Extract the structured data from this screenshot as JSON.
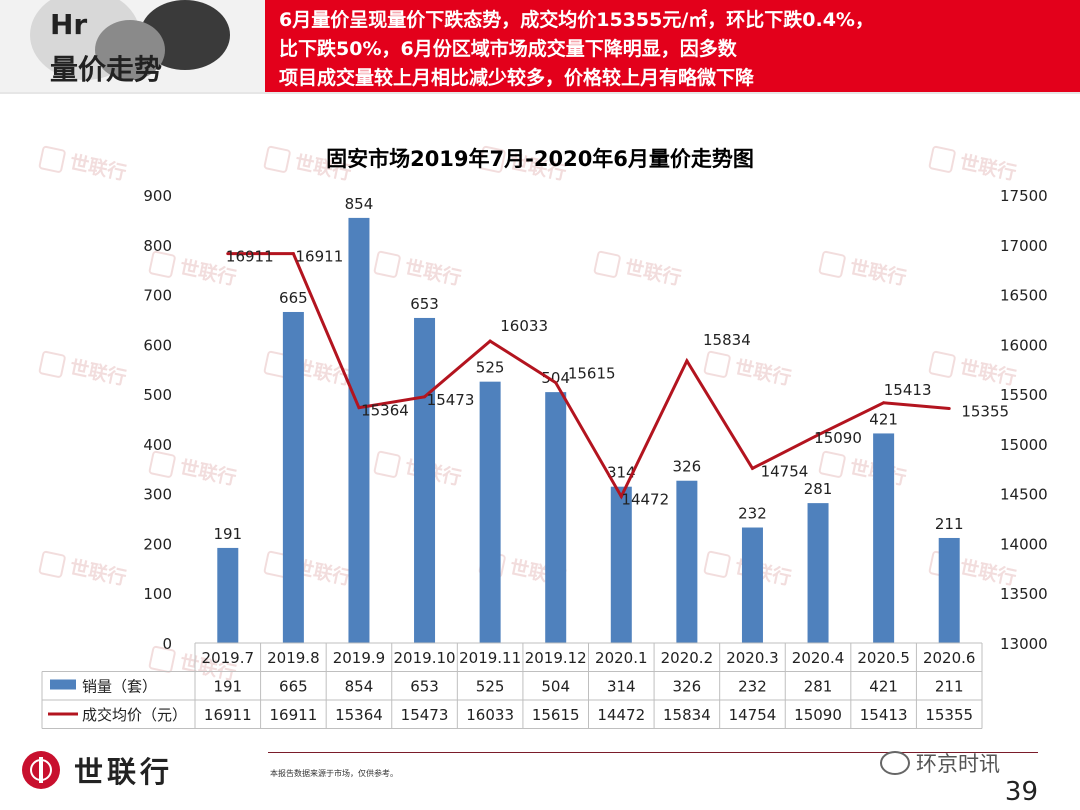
{
  "header": {
    "left_text_1": "Hr",
    "left_text_2": "量价走势",
    "banner_line1": "6月量价呈现量价下跌态势，成交均价15355元/㎡，环比下跌0.4%，",
    "banner_line2": "比下跌50%，6月份区域市场成交量下降明显，因多数",
    "banner_line3": "项目成交量较上月相比减少较多，价格较上月有略微下降"
  },
  "watermark_text": "世联行",
  "colors": {
    "bar": "#4f81bd",
    "line": "#b3141f",
    "banner": "#e3001b",
    "grid_border": "#bfbfbf"
  },
  "chart_data": {
    "type": "bar+line",
    "title": "固安市场2019年7月-2020年6月量价走势图",
    "categories": [
      "2019.7",
      "2019.8",
      "2019.9",
      "2019.10",
      "2019.11",
      "2019.12",
      "2020.1",
      "2020.2",
      "2020.3",
      "2020.4",
      "2020.5",
      "2020.6"
    ],
    "series": [
      {
        "name": "销量（套）",
        "type": "bar",
        "axis": "left",
        "values": [
          191,
          665,
          854,
          653,
          525,
          504,
          314,
          326,
          232,
          281,
          421,
          211
        ]
      },
      {
        "name": "成交均价（元）",
        "type": "line",
        "axis": "right",
        "values": [
          16911,
          16911,
          15364,
          15473,
          16033,
          15615,
          14472,
          15834,
          14754,
          15090,
          15413,
          15355
        ]
      }
    ],
    "y_left": {
      "min": 0,
      "max": 900,
      "step": 100
    },
    "y_right": {
      "min": 13000,
      "max": 17500,
      "step": 500
    },
    "data_table": true,
    "grid": false,
    "legend": "data-table"
  },
  "footer": {
    "logo_text": "世联行",
    "source_note": "本报告数据来源于市场，仅供参考。",
    "wechat_label": "环京时讯",
    "page_number": "39"
  }
}
